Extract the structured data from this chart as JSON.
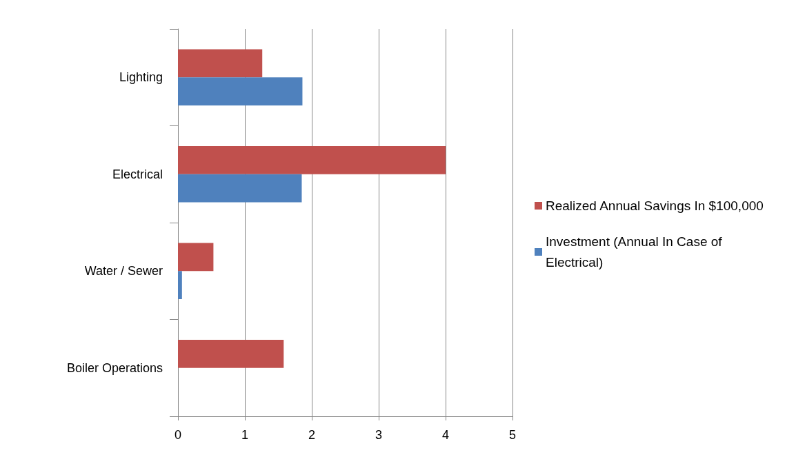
{
  "chart_data": {
    "type": "bar",
    "orientation": "horizontal",
    "categories": [
      "Lighting",
      "Electrical",
      "Water / Sewer",
      "Boiler Operations"
    ],
    "series": [
      {
        "name": "Realized Annual Savings In $100,000",
        "color": "#c0504d",
        "values": [
          1.26,
          4.0,
          0.53,
          1.58
        ]
      },
      {
        "name": "Investment (Annual In Case of Electrical)",
        "color": "#4f81bd",
        "values": [
          1.86,
          1.85,
          0.06,
          null
        ]
      }
    ],
    "xlim": [
      0,
      5
    ],
    "xticks": [
      0,
      1,
      2,
      3,
      4,
      5
    ],
    "grid": "x",
    "legend": "right"
  }
}
